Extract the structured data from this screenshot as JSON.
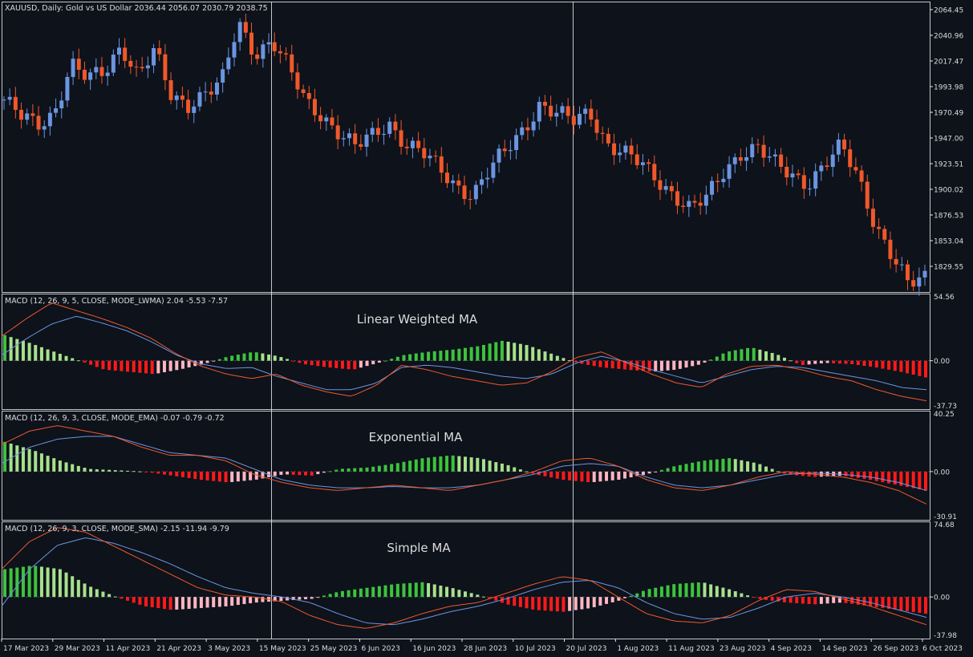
{
  "colors": {
    "background": "#0d121b",
    "grid": "#e6e6e6",
    "text": "#dcdcdc",
    "bull": "#6b95e0",
    "bear": "#f0582a",
    "macd_line": "#f0582a",
    "signal_line": "#6b95e0",
    "hist_pos_rising": "#3ec23e",
    "hist_pos_falling": "#a8e08c",
    "hist_neg_falling": "#ff1a1a",
    "hist_neg_rising": "#ffb6c1"
  },
  "price_panel": {
    "header": "XAUUSD, Daily:  Gold vs US Dollar  2036.44 2056.07 2030.79 2038.75",
    "ticks": [
      "2064.45",
      "2040.96",
      "2017.47",
      "1993.98",
      "1970.49",
      "1947.00",
      "1923.51",
      "1900.02",
      "1876.53",
      "1853.04",
      "1829.55"
    ]
  },
  "macd_panels": [
    {
      "header": "MACD (12, 26, 9, 5, CLOSE, MODE_LWMA) 2.04 -5.53 -7.57",
      "label": "Linear Weighted MA",
      "top": "54.56",
      "zero": "0.00",
      "bottom": "-37.73"
    },
    {
      "header": "MACD (12, 26, 9, 3, CLOSE, MODE_EMA) -0.07 -0.79 -0.72",
      "label": "Exponential MA",
      "top": "40.25",
      "zero": "0.00",
      "bottom": "-30.91"
    },
    {
      "header": "MACD (12, 26, 9, 3, CLOSE, MODE_SMA) -2.15 -11.94 -9.79",
      "label": "Simple MA",
      "top": "74.68",
      "zero": "0.00",
      "bottom": "-37.98"
    }
  ],
  "x_axis_labels": [
    "17 Mar 2023",
    "29 Mar 2023",
    "11 Apr 2023",
    "21 Apr 2023",
    "3 May 2023",
    "15 May 2023",
    "25 May 2023",
    "6 Jun 2023",
    "16 Jun 2023",
    "28 Jun 2023",
    "10 Jul 2023",
    "20 Jul 2023",
    "1 Aug 2023",
    "11 Aug 2023",
    "23 Aug 2023",
    "4 Sep 2023",
    "14 Sep 2023",
    "26 Sep 2023",
    "6 Oct 2023"
  ],
  "chart_data": [
    {
      "type": "candlestick",
      "title": "XAUUSD, Daily:  Gold vs US Dollar",
      "x": [
        "17 Mar 2023",
        "29 Mar 2023",
        "11 Apr 2023",
        "21 Apr 2023",
        "3 May 2023",
        "15 May 2023",
        "25 May 2023",
        "6 Jun 2023",
        "16 Jun 2023",
        "28 Jun 2023",
        "10 Jul 2023",
        "20 Jul 2023",
        "1 Aug 2023",
        "11 Aug 2023",
        "23 Aug 2023",
        "4 Sep 2023",
        "14 Sep 2023",
        "26 Sep 2023",
        "6 Oct 2023"
      ],
      "close_path": [
        1988,
        1972,
        1965,
        1978,
        2020,
        2005,
        2012,
        2038,
        2010,
        2030,
        1990,
        1985,
        1995,
        2002,
        2055,
        2030,
        2042,
        2015,
        1985,
        1975,
        1960,
        1945,
        1955,
        1968,
        1950,
        1940,
        1925,
        1912,
        1905,
        1925,
        1942,
        1962,
        1985,
        1975,
        1968,
        1978,
        1950,
        1940,
        1930,
        1918,
        1905,
        1890,
        1900,
        1925,
        1942,
        1945,
        1930,
        1922,
        1915,
        1930,
        1945,
        1920,
        1880,
        1850,
        1822,
        1830
      ],
      "ylim": [
        1820,
        2068
      ]
    },
    {
      "type": "macd",
      "title": "MACD (12, 26, 9, 5, CLOSE, MODE_LWMA)",
      "ylim": [
        -37.73,
        54.56
      ],
      "macd": [
        22,
        38,
        52,
        45,
        38,
        30,
        20,
        6,
        -5,
        -12,
        -16,
        -12,
        -22,
        -28,
        -32,
        -22,
        -4,
        -8,
        -14,
        -18,
        -22,
        -20,
        -10,
        3,
        8,
        -2,
        -12,
        -20,
        -24,
        -12,
        -5,
        -4,
        -8,
        -14,
        -18,
        -26,
        -32,
        -36
      ],
      "signal": [
        5,
        20,
        33,
        40,
        34,
        27,
        17,
        5,
        -3,
        -7,
        -6,
        -14,
        -20,
        -26,
        -26,
        -20,
        -6,
        -4,
        -6,
        -10,
        -14,
        -16,
        -12,
        -2,
        4,
        -1,
        -8,
        -14,
        -20,
        -14,
        -8,
        -5,
        -6,
        -10,
        -14,
        -18,
        -24,
        -26
      ],
      "hist": [
        23,
        16,
        8,
        0,
        -8,
        -10,
        -12,
        -8,
        -3,
        4,
        8,
        4,
        -3,
        -6,
        -8,
        -2,
        5,
        8,
        10,
        13,
        18,
        14,
        6,
        -2,
        -6,
        -8,
        -10,
        -8,
        -3,
        8,
        12,
        6,
        -4,
        -2,
        -3,
        -6,
        -10,
        -15
      ]
    },
    {
      "type": "macd",
      "title": "MACD (12, 26, 9, 3, CLOSE, MODE_EMA)",
      "ylim": [
        -30.91,
        40.25
      ],
      "macd": [
        20,
        30,
        34,
        30,
        26,
        18,
        12,
        12,
        8,
        -2,
        -8,
        -12,
        -14,
        -12,
        -10,
        -12,
        -14,
        -10,
        -6,
        0,
        8,
        10,
        4,
        -6,
        -12,
        -14,
        -10,
        -4,
        0,
        -2,
        -4,
        -8,
        -14,
        -24
      ],
      "signal": [
        6,
        18,
        24,
        26,
        26,
        20,
        14,
        12,
        10,
        2,
        -6,
        -10,
        -12,
        -12,
        -11,
        -12,
        -12,
        -10,
        -6,
        -2,
        4,
        6,
        4,
        -4,
        -10,
        -12,
        -10,
        -6,
        -2,
        -1,
        -2,
        -4,
        -8,
        -14
      ],
      "hist": [
        22,
        16,
        8,
        2,
        1,
        0,
        -3,
        -6,
        -8,
        -6,
        -2,
        -3,
        2,
        3,
        6,
        10,
        12,
        10,
        5,
        -2,
        -6,
        -8,
        -6,
        -2,
        4,
        8,
        10,
        6,
        -2,
        -4,
        -3,
        -6,
        -10,
        -14
      ]
    },
    {
      "type": "macd",
      "title": "MACD (12, 26, 9, 3, CLOSE, MODE_SMA)",
      "ylim": [
        -37.98,
        74.68
      ],
      "macd": [
        30,
        60,
        75,
        70,
        55,
        40,
        25,
        10,
        2,
        0,
        -5,
        -20,
        -30,
        -34,
        -28,
        -18,
        -10,
        -6,
        4,
        14,
        22,
        18,
        0,
        -18,
        -26,
        -28,
        -20,
        -4,
        8,
        6,
        -2,
        -10,
        -20,
        -30
      ],
      "signal": [
        -10,
        30,
        56,
        64,
        58,
        48,
        36,
        22,
        10,
        4,
        0,
        -6,
        -18,
        -28,
        -30,
        -24,
        -16,
        -10,
        -2,
        8,
        16,
        18,
        10,
        -6,
        -18,
        -24,
        -22,
        -12,
        0,
        4,
        0,
        -6,
        -14,
        -22
      ],
      "hist": [
        30,
        34,
        30,
        12,
        0,
        -10,
        -14,
        -12,
        -10,
        -6,
        -4,
        -2,
        6,
        10,
        14,
        16,
        10,
        2,
        -8,
        -14,
        -16,
        -12,
        -4,
        8,
        14,
        16,
        8,
        -2,
        -6,
        -8,
        -6,
        -10,
        -14,
        -18
      ]
    }
  ]
}
